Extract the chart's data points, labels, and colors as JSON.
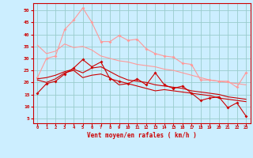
{
  "x": [
    0,
    1,
    2,
    3,
    4,
    5,
    6,
    7,
    8,
    9,
    10,
    11,
    12,
    13,
    14,
    15,
    16,
    17,
    18,
    19,
    20,
    21,
    22,
    23
  ],
  "line1": [
    15.5,
    19.5,
    20.5,
    23.5,
    26.0,
    29.5,
    26.5,
    28.5,
    21.5,
    20.5,
    19.5,
    21.5,
    19.0,
    24.0,
    19.0,
    17.5,
    18.5,
    15.5,
    12.5,
    13.5,
    14.0,
    9.5,
    11.5,
    6.0
  ],
  "line2": [
    21.0,
    20.0,
    21.5,
    24.0,
    25.0,
    22.0,
    23.0,
    23.5,
    22.0,
    19.0,
    19.5,
    18.5,
    17.5,
    16.5,
    17.0,
    16.5,
    16.0,
    15.5,
    15.0,
    14.5,
    13.5,
    13.0,
    12.5,
    12.0
  ],
  "line3": [
    21.5,
    22.0,
    23.0,
    24.5,
    25.5,
    24.0,
    26.0,
    26.5,
    24.5,
    22.5,
    21.0,
    20.5,
    20.0,
    19.0,
    18.5,
    18.0,
    17.5,
    16.5,
    16.0,
    15.5,
    15.0,
    14.0,
    13.5,
    13.0
  ],
  "line4": [
    22.0,
    30.0,
    31.0,
    42.0,
    46.0,
    51.0,
    45.0,
    37.0,
    37.0,
    39.5,
    37.5,
    38.0,
    34.0,
    32.0,
    31.0,
    30.5,
    28.0,
    27.5,
    21.0,
    21.0,
    20.5,
    20.5,
    18.0,
    24.0
  ],
  "line5": [
    35.5,
    32.0,
    33.0,
    36.0,
    34.5,
    35.0,
    33.5,
    31.0,
    30.0,
    29.0,
    28.5,
    27.5,
    27.0,
    26.5,
    25.5,
    25.0,
    24.0,
    23.0,
    22.0,
    21.0,
    20.5,
    20.0,
    19.5,
    19.0
  ],
  "xlabel": "Vent moyen/en rafales ( km/h )",
  "yticks": [
    5,
    10,
    15,
    20,
    25,
    30,
    35,
    40,
    45,
    50
  ],
  "xticks": [
    0,
    1,
    2,
    3,
    4,
    5,
    6,
    7,
    8,
    9,
    10,
    11,
    12,
    13,
    14,
    15,
    16,
    17,
    18,
    19,
    20,
    21,
    22,
    23
  ],
  "bg_color": "#cceeff",
  "grid_color": "#99cccc",
  "line1_color": "#cc0000",
  "line2_color": "#cc0000",
  "line3_color": "#cc0000",
  "line4_color": "#ff9999",
  "line5_color": "#ff9999",
  "xlim": [
    -0.5,
    23.5
  ],
  "ylim": [
    3,
    53
  ]
}
